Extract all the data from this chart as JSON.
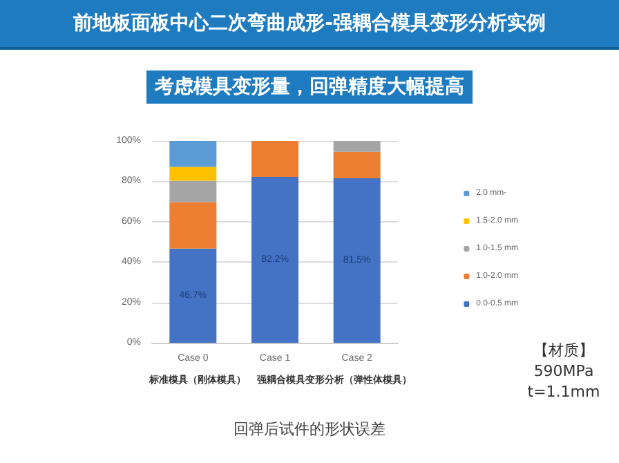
{
  "chart_data": {
    "type": "bar",
    "title": "前地板面板中心二次弯曲成形-强耦合模具变形分析实例",
    "subtitle": "考虑模具变形量，回弹精度大幅提高",
    "categories": [
      "Case 0",
      "Case 1",
      "Case 2"
    ],
    "stacked": true,
    "series": [
      {
        "name": "0.0-0.5 mm",
        "color": "#4472c4",
        "values": [
          46.7,
          82.2,
          81.5
        ],
        "value_labels": [
          "46.7%",
          "82.2%",
          "81.5%"
        ]
      },
      {
        "name": "1.0-2.0 mm",
        "color": "#ed7d31",
        "values": [
          23,
          17.8,
          13.1
        ]
      },
      {
        "name": "1.0-1.5 mm",
        "color": "#a5a5a5",
        "values": [
          10.6,
          0,
          5.4
        ]
      },
      {
        "name": "1.5-2.0 mm",
        "color": "#ffc000",
        "values": [
          6.9,
          0,
          0
        ]
      },
      {
        "name": "2.0 mm-",
        "color": "#5b9bd5",
        "values": [
          12.8,
          0,
          0
        ]
      }
    ],
    "ylim": [
      0,
      100
    ],
    "yticks": [
      {
        "value": 0,
        "label": "0%"
      },
      {
        "value": 20,
        "label": "20%"
      },
      {
        "value": 40,
        "label": "40%"
      },
      {
        "value": 60,
        "label": "60%"
      },
      {
        "value": 80,
        "label": "80%"
      },
      {
        "value": 100,
        "label": "100%"
      }
    ],
    "grid": "y",
    "legend": "right",
    "annotations": [
      "标准模具（刚体模具）",
      "强耦合模具变形分析（弹性体模具）",
      "【材质】\n590MPa\nt=1.1mm",
      "回弹后试件的形状误差"
    ]
  }
}
